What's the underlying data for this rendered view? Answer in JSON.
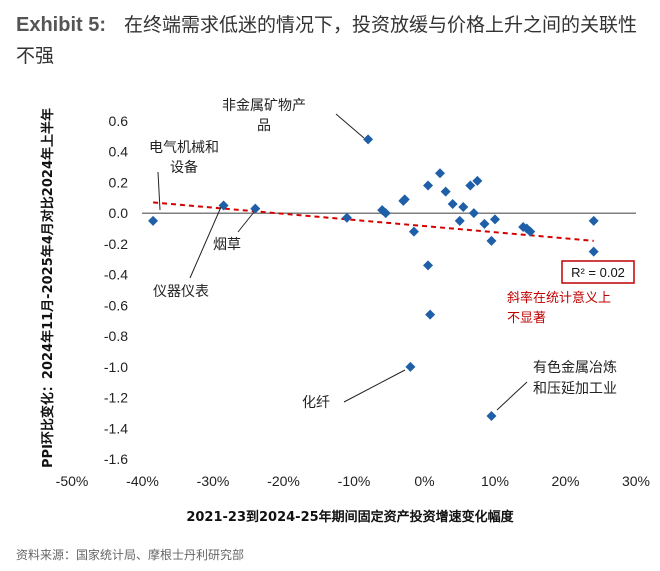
{
  "header": {
    "exhibit": "Exhibit 5:",
    "title": "在终端需求低迷的情况下，投资放缓与价格上升之间的关联性不强"
  },
  "source": "资料来源：国家统计局、摩根士丹利研究部",
  "colors": {
    "points": "#1f5fa8",
    "trend": "#d40000",
    "zero_line": "#555555",
    "note": "#c00000"
  },
  "chart_data": {
    "type": "scatter",
    "xlabel": "2021-23到2024-25年期间固定资产投资增速变化幅度",
    "ylabel": "PPI环比变化：2024年11月-2025年4月对比2024年上半年",
    "xlim": [
      -50,
      30
    ],
    "ylim": [
      -1.6,
      0.6
    ],
    "x_ticks": [
      "-50%",
      "-40%",
      "-30%",
      "-20%",
      "-10%",
      "0%",
      "10%",
      "20%",
      "30%"
    ],
    "y_ticks": [
      "0.6",
      "0.4",
      "0.2",
      "0.0",
      "-0.2",
      "-0.4",
      "-0.6",
      "-0.8",
      "-1.0",
      "-1.2",
      "-1.4",
      "-1.6"
    ],
    "points": [
      {
        "x": -38.5,
        "y": -0.05
      },
      {
        "x": -28.5,
        "y": 0.05
      },
      {
        "x": -24,
        "y": 0.03
      },
      {
        "x": -11,
        "y": -0.03
      },
      {
        "x": -8,
        "y": 0.48
      },
      {
        "x": -6,
        "y": 0.02
      },
      {
        "x": -5.5,
        "y": 0.0
      },
      {
        "x": -3,
        "y": 0.08
      },
      {
        "x": -2.8,
        "y": 0.09
      },
      {
        "x": -1.5,
        "y": -0.12
      },
      {
        "x": -2,
        "y": -1.0
      },
      {
        "x": 0.5,
        "y": 0.18
      },
      {
        "x": 0.5,
        "y": -0.34
      },
      {
        "x": 0.8,
        "y": -0.66
      },
      {
        "x": 2.2,
        "y": 0.26
      },
      {
        "x": 3,
        "y": 0.14
      },
      {
        "x": 4,
        "y": 0.06
      },
      {
        "x": 5,
        "y": -0.05
      },
      {
        "x": 5.5,
        "y": 0.04
      },
      {
        "x": 6.5,
        "y": 0.18
      },
      {
        "x": 7,
        "y": 0.0
      },
      {
        "x": 7.5,
        "y": 0.21
      },
      {
        "x": 8.5,
        "y": -0.07
      },
      {
        "x": 9.5,
        "y": -0.18
      },
      {
        "x": 10,
        "y": -0.04
      },
      {
        "x": 9.5,
        "y": -1.32
      },
      {
        "x": 14,
        "y": -0.09
      },
      {
        "x": 14.5,
        "y": -0.1
      },
      {
        "x": 15,
        "y": -0.12
      },
      {
        "x": 24,
        "y": -0.05
      },
      {
        "x": 24,
        "y": -0.25
      }
    ],
    "trendline": {
      "x": [
        -38.5,
        24
      ],
      "y": [
        0.07,
        -0.18
      ]
    },
    "r2_label": "R² = 0.02",
    "trend_note": [
      "斜率在统计意义上",
      "不显著"
    ],
    "annotations": [
      {
        "lines": [
          "非金属矿物产",
          "品"
        ],
        "x": -8,
        "y": 0.48
      },
      {
        "lines": [
          "电气机械和",
          "设备"
        ],
        "x": -38.5,
        "y": -0.05
      },
      {
        "lines": [
          "烟草"
        ],
        "x": -24,
        "y": 0.03
      },
      {
        "lines": [
          "仪器仪表"
        ],
        "x": -28.5,
        "y": 0.05
      },
      {
        "lines": [
          "化纤"
        ],
        "x": -2,
        "y": -1.0
      },
      {
        "lines": [
          "有色金属冶炼",
          "和压延加工业"
        ],
        "x": 9.5,
        "y": -1.32
      }
    ]
  }
}
